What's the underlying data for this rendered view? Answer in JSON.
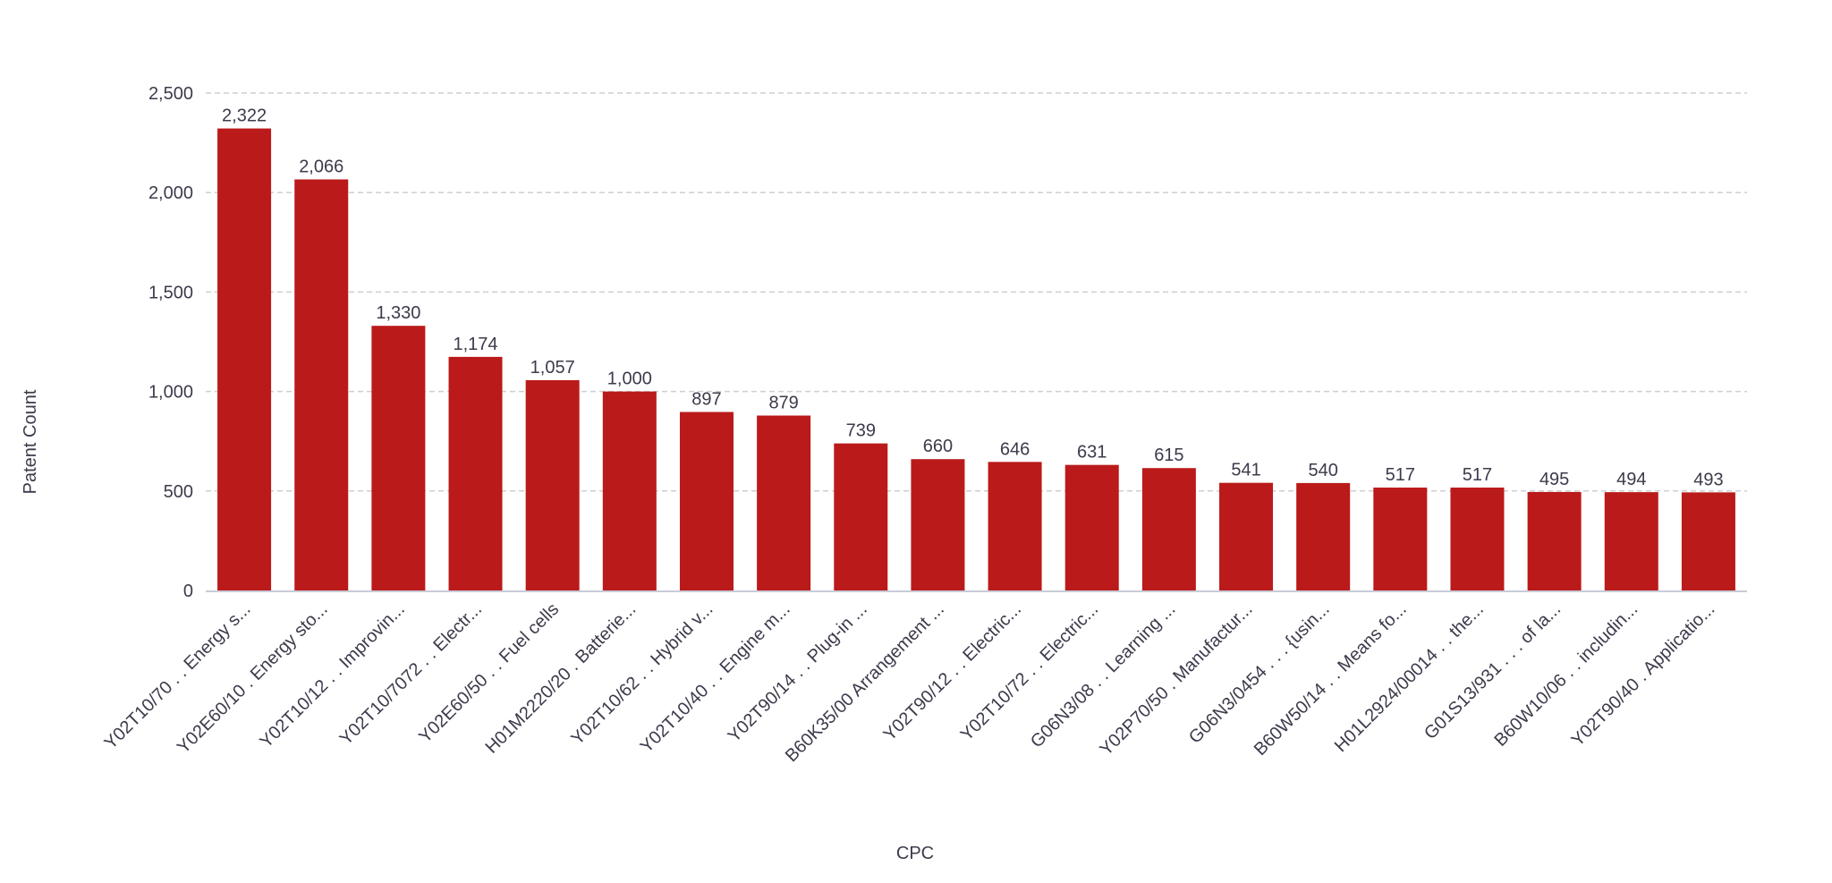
{
  "chart_data": {
    "type": "bar",
    "xlabel": "CPC",
    "ylabel": "Patent Count",
    "ylim": [
      0,
      2500
    ],
    "yticks": [
      0,
      500,
      1000,
      1500,
      2000,
      2500
    ],
    "ytick_labels": [
      "0",
      "500",
      "1,000",
      "1,500",
      "2,000",
      "2,500"
    ],
    "grid": "horizontal dashed",
    "bar_color": "#bb1a1a",
    "categories": [
      "Y02T10/70 . . Energy s...",
      "Y02E60/10 . Energy sto...",
      "Y02T10/12 . . Improvin...",
      "Y02T10/7072 . . Electr...",
      "Y02E60/50 . . Fuel cells",
      "H01M2220/20 . Batterie...",
      "Y02T10/62 . . Hybrid v...",
      "Y02T10/40 . . Engine m...",
      "Y02T90/14 . . Plug-in ...",
      "B60K35/00 Arrangement ...",
      "Y02T90/12 . . Electric...",
      "Y02T10/72 . . Electric...",
      "G06N3/08 . . Learning ...",
      "Y02P70/50 . Manufactur...",
      "G06N3/0454 . . . {usin...",
      "B60W50/14 . . Means fo...",
      "H01L2924/00014 . . the...",
      "G01S13/931 . . . of la...",
      "B60W10/06 . . includin...",
      "Y02T90/40 . Applicatio..."
    ],
    "values": [
      2322,
      2066,
      1330,
      1174,
      1057,
      1000,
      897,
      879,
      739,
      660,
      646,
      631,
      615,
      541,
      540,
      517,
      517,
      495,
      494,
      493
    ],
    "data_labels": [
      "2,322",
      "2,066",
      "1,330",
      "1,174",
      "1,057",
      "1,000",
      "897",
      "879",
      "739",
      "660",
      "646",
      "631",
      "615",
      "541",
      "540",
      "517",
      "517",
      "495",
      "494",
      "493"
    ]
  }
}
